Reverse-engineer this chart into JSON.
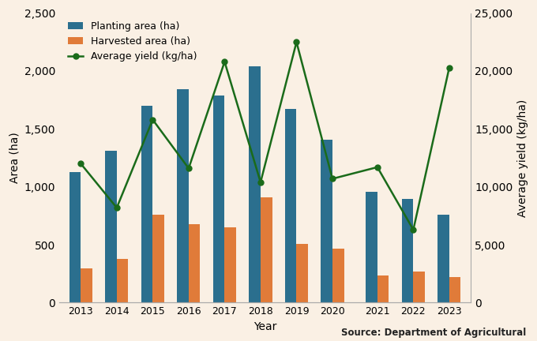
{
  "years": [
    2013,
    2014,
    2015,
    2016,
    2017,
    2018,
    2019,
    2020,
    2021,
    2022,
    2023
  ],
  "planting_area": [
    1130,
    1310,
    1700,
    1840,
    1790,
    2040,
    1670,
    1410,
    960,
    895,
    760
  ],
  "harvested_area": [
    295,
    375,
    760,
    680,
    650,
    910,
    505,
    470,
    235,
    270,
    220
  ],
  "avg_yield": [
    12000,
    8200,
    15800,
    11600,
    20800,
    10400,
    22500,
    10700,
    11700,
    6300,
    20300
  ],
  "bar_color_plant": "#2b6f8e",
  "bar_color_harvest": "#e07b39",
  "line_color": "#1a6b1a",
  "background_color": "#faf0e4",
  "ylabel_left": "Area (ha)",
  "ylabel_right": "Average yield (kg/ha)",
  "xlabel": "Year",
  "source_text": "Source: Department of Agricultural",
  "legend_labels": [
    "Planting area (ha)",
    "Harvested area (ha)",
    "Average yield (kg/ha)"
  ],
  "ylim_left": [
    0,
    2500
  ],
  "ylim_right": [
    0,
    25000
  ],
  "yticks_left": [
    0,
    500,
    1000,
    1500,
    2000,
    2500
  ],
  "yticks_right": [
    0,
    5000,
    10000,
    15000,
    20000,
    25000
  ]
}
